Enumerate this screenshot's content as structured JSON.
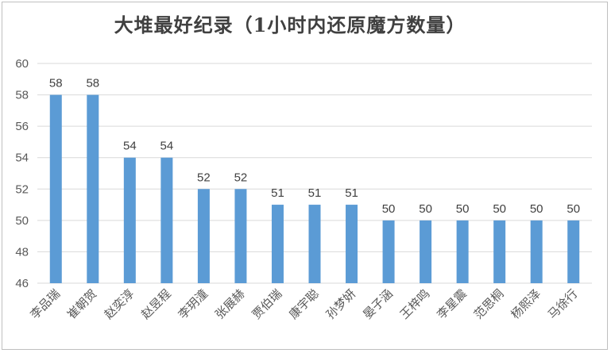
{
  "chart_data": {
    "type": "bar",
    "title": "大堆最好纪录（1小时内还原魔方数量）",
    "xlabel": "",
    "ylabel": "",
    "ylim": [
      46,
      60
    ],
    "yticks": [
      46,
      48,
      50,
      52,
      54,
      56,
      58,
      60
    ],
    "grid": true,
    "legend": "none",
    "bar_color": "#5b9bd5",
    "categories": [
      "李品瑞",
      "崔朝贺",
      "赵奕淳",
      "赵昱程",
      "李玥潼",
      "张展赫",
      "贾伯瑞",
      "康宇聪",
      "孙梦妍",
      "晏子涵",
      "王梓鸣",
      "李星震",
      "范思桐",
      "杨熙泽",
      "马徐行"
    ],
    "values": [
      58,
      58,
      54,
      54,
      52,
      52,
      51,
      51,
      51,
      50,
      50,
      50,
      50,
      50,
      50
    ]
  }
}
